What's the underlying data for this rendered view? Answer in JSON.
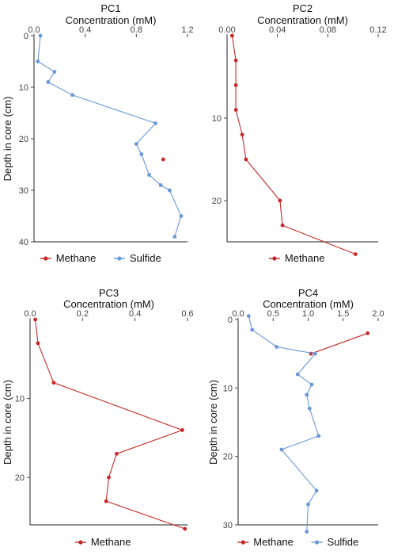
{
  "colors": {
    "methane": "#c62828",
    "sulfide": "#6a98d6"
  },
  "y_axis_label": "Depth in core (cm)",
  "x_axis_label": "Concentration (mM)",
  "chart_data": [
    {
      "type": "line",
      "title": "PC1",
      "xlabel": "Concentration (mM)",
      "ylabel": "Depth in core (cm)",
      "xlim": [
        0,
        1.2
      ],
      "xticks": [
        0.0,
        0.4,
        0.8,
        1.2
      ],
      "xtick_labels": [
        "0.0",
        "0.4",
        "0.8",
        "1.2"
      ],
      "ylim": [
        0,
        40
      ],
      "yticks": [
        0,
        10,
        20,
        30,
        40
      ],
      "ytick_labels": [
        "0",
        "10",
        "20",
        "30",
        "40"
      ],
      "y_reversed": true,
      "legend": [
        "Methane",
        "Sulfide"
      ],
      "series": [
        {
          "name": "Methane",
          "color_key": "methane",
          "connect": false,
          "x": [
            1.01
          ],
          "y": [
            24
          ]
        },
        {
          "name": "Sulfide",
          "color_key": "sulfide",
          "connect": true,
          "x": [
            0.05,
            0.03,
            0.16,
            0.11,
            0.3,
            0.95,
            0.8,
            0.84,
            0.9,
            0.99,
            1.06,
            1.15,
            1.1
          ],
          "y": [
            0,
            5,
            7,
            9,
            11.5,
            17,
            21,
            23,
            27,
            29,
            30,
            35,
            39
          ]
        }
      ]
    },
    {
      "type": "line",
      "title": "PC2",
      "xlabel": "Concentration (mM)",
      "ylabel": "",
      "xlim": [
        0,
        0.12
      ],
      "xticks": [
        0.0,
        0.04,
        0.08,
        0.12
      ],
      "xtick_labels": [
        "0.00",
        "0.04",
        "0.08",
        "0.12"
      ],
      "ylim": [
        0,
        25
      ],
      "yticks": [
        10,
        20
      ],
      "ytick_labels": [
        "10",
        "20"
      ],
      "y_reversed": true,
      "legend": [
        "Methane"
      ],
      "series": [
        {
          "name": "Methane",
          "color_key": "methane",
          "connect": true,
          "x": [
            0.004,
            0.007,
            0.007,
            0.007,
            0.012,
            0.015,
            0.042,
            0.044,
            0.102
          ],
          "y": [
            0,
            3,
            6,
            9,
            12,
            15,
            20,
            23,
            26.5
          ]
        }
      ]
    },
    {
      "type": "line",
      "title": "PC3",
      "xlabel": "Concentration (mM)",
      "ylabel": "Depth in core (cm)",
      "xlim": [
        0,
        0.6
      ],
      "xticks": [
        0.0,
        0.2,
        0.4,
        0.6
      ],
      "xtick_labels": [
        "0.0",
        "0.2",
        "0.4",
        "0.6"
      ],
      "ylim": [
        0,
        26
      ],
      "yticks": [
        10,
        20
      ],
      "ytick_labels": [
        "10",
        "20"
      ],
      "y_reversed": true,
      "legend": [
        "Methane"
      ],
      "series": [
        {
          "name": "Methane",
          "color_key": "methane",
          "connect": true,
          "x": [
            0.02,
            0.03,
            0.09,
            0.58,
            0.33,
            0.3,
            0.29,
            0.59
          ],
          "y": [
            0,
            3,
            8,
            14,
            17,
            20,
            23,
            26.5
          ]
        }
      ]
    },
    {
      "type": "line",
      "title": "PC4",
      "xlabel": "Concentration (mM)",
      "ylabel": "Depth in core (cm)",
      "xlim": [
        0,
        2.0
      ],
      "xticks": [
        0.0,
        0.5,
        1.0,
        1.5,
        2.0
      ],
      "xtick_labels": [
        "0.0",
        "0.5",
        "1.0",
        "1.5",
        "2.0"
      ],
      "ylim": [
        0,
        30
      ],
      "yticks": [
        0,
        10,
        20,
        30
      ],
      "ytick_labels": [
        "0",
        "10",
        "20",
        "30"
      ],
      "y_reversed": true,
      "legend": [
        "Methane",
        "Sulfide"
      ],
      "series": [
        {
          "name": "Methane",
          "color_key": "methane",
          "connect": true,
          "x": [
            1.85,
            1.04
          ],
          "y": [
            2,
            5
          ]
        },
        {
          "name": "Sulfide",
          "color_key": "sulfide",
          "connect": true,
          "x": [
            0.15,
            0.2,
            0.55,
            1.1,
            0.85,
            1.05,
            0.98,
            1.02,
            1.15,
            0.62,
            1.12,
            1.0,
            0.98
          ],
          "y": [
            -0.5,
            1.5,
            4,
            5,
            8,
            9.5,
            11,
            13,
            17,
            19,
            25,
            27,
            31
          ]
        }
      ]
    }
  ]
}
